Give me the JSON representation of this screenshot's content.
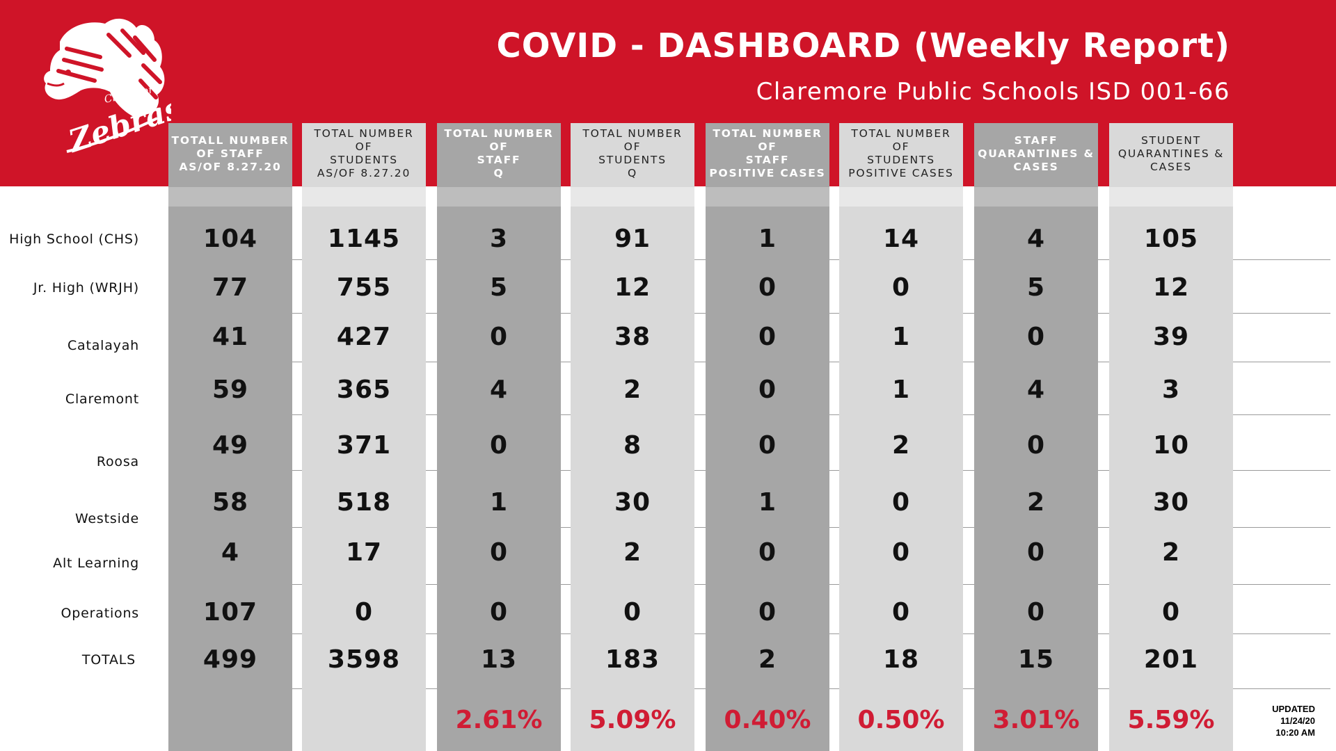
{
  "header": {
    "title": "COVID - DASHBOARD (Weekly Report)",
    "subtitle": "Claremore Public Schools ISD 001-66",
    "logo_text_top": "Claremore",
    "logo_text_main": "Zebras"
  },
  "colors": {
    "banner": "#cf1428",
    "dark_column": "#a6a6a6",
    "light_column": "#d9d9d9",
    "percent_text": "#d01c34"
  },
  "columns": [
    "TOTALL NUMBER\nOF STAFF\nAS/OF 8.27.20",
    "TOTAL NUMBER OF\nSTUDENTS\nAS/OF 8.27.20",
    "TOTAL NUMBER OF\nSTAFF\nQ",
    "TOTAL NUMBER OF\nSTUDENTS\nQ",
    "TOTAL NUMBER OF\nSTAFF\nPOSITIVE CASES",
    "TOTAL NUMBER OF\nSTUDENTS\nPOSITIVE CASES",
    "STAFF\nQUARANTINES &\nCASES",
    "STUDENT\nQUARANTINES &\nCASES"
  ],
  "rows": [
    {
      "label": "High School (CHS)",
      "values": [
        "104",
        "1145",
        "3",
        "91",
        "1",
        "14",
        "4",
        "105"
      ]
    },
    {
      "label": "Jr. High (WRJH)",
      "values": [
        "77",
        "755",
        "5",
        "12",
        "0",
        "0",
        "5",
        "12"
      ]
    },
    {
      "label": "Catalayah",
      "values": [
        "41",
        "427",
        "0",
        "38",
        "0",
        "1",
        "0",
        "39"
      ]
    },
    {
      "label": "Claremont",
      "values": [
        "59",
        "365",
        "4",
        "2",
        "0",
        "1",
        "4",
        "3"
      ]
    },
    {
      "label": "Roosa",
      "values": [
        "49",
        "371",
        "0",
        "8",
        "0",
        "2",
        "0",
        "10"
      ]
    },
    {
      "label": "Westside",
      "values": [
        "58",
        "518",
        "1",
        "30",
        "1",
        "0",
        "2",
        "30"
      ]
    },
    {
      "label": "Alt Learning",
      "values": [
        "4",
        "17",
        "0",
        "2",
        "0",
        "0",
        "0",
        "2"
      ]
    },
    {
      "label": "Operations",
      "values": [
        "107",
        "0",
        "0",
        "0",
        "0",
        "0",
        "0",
        "0"
      ]
    }
  ],
  "totals": {
    "label": "TOTALS",
    "values": [
      "499",
      "3598",
      "13",
      "183",
      "2",
      "18",
      "15",
      "201"
    ]
  },
  "percentages": [
    "",
    "",
    "2.61%",
    "5.09%",
    "0.40%",
    "0.50%",
    "3.01%",
    "5.59%"
  ],
  "updated": {
    "line1": "UPDATED",
    "line2": "11/24/20",
    "line3": "10:20 AM"
  }
}
